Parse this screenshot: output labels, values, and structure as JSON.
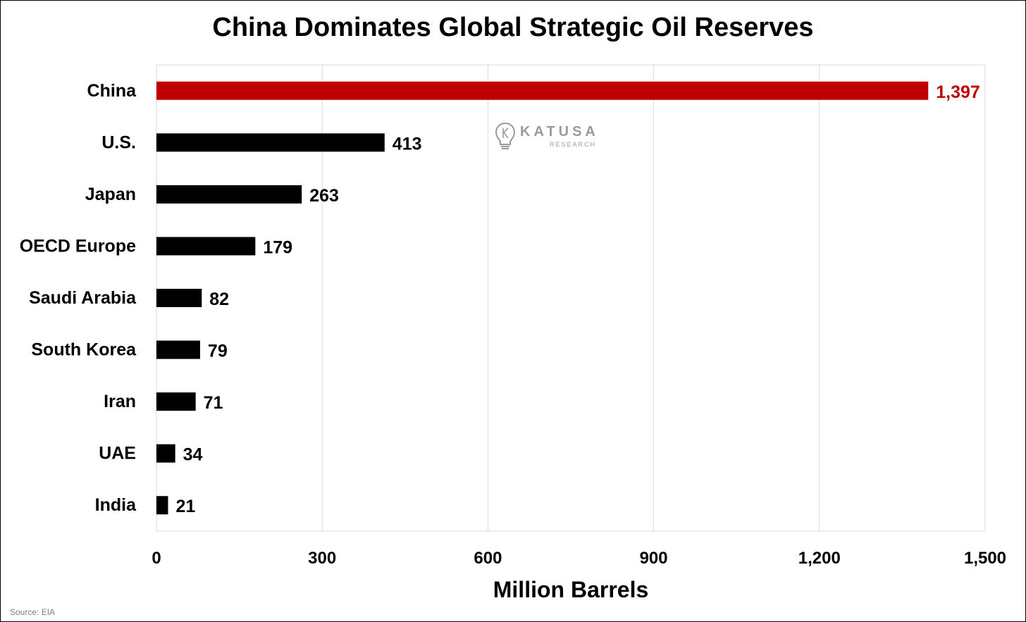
{
  "chart_data": {
    "type": "bar",
    "orientation": "horizontal",
    "title": "China Dominates Global Strategic Oil Reserves",
    "xlabel": "Million Barrels",
    "ylabel": "",
    "categories": [
      "China",
      "U.S.",
      "Japan",
      "OECD Europe",
      "Saudi Arabia",
      "South Korea",
      "Iran",
      "UAE",
      "India"
    ],
    "values": [
      1397,
      413,
      263,
      179,
      82,
      79,
      71,
      34,
      21
    ],
    "value_labels": [
      "1,397",
      "413",
      "263",
      "179",
      "82",
      "79",
      "71",
      "34",
      "21"
    ],
    "xlim": [
      0,
      1500
    ],
    "xticks": [
      0,
      300,
      600,
      900,
      1200,
      1500
    ],
    "xtick_labels": [
      "0",
      "300",
      "600",
      "900",
      "1,200",
      "1,500"
    ],
    "grid": "vertical",
    "legend": "none",
    "highlight_category": "China",
    "colors": {
      "highlight": "#c00000",
      "default": "#000000",
      "grid": "#d9d9d9"
    }
  },
  "watermark": {
    "name": "KATUSA",
    "sub": "RESEARCH",
    "icon": "lightbulb-k-icon"
  },
  "source": "Source: EIA"
}
